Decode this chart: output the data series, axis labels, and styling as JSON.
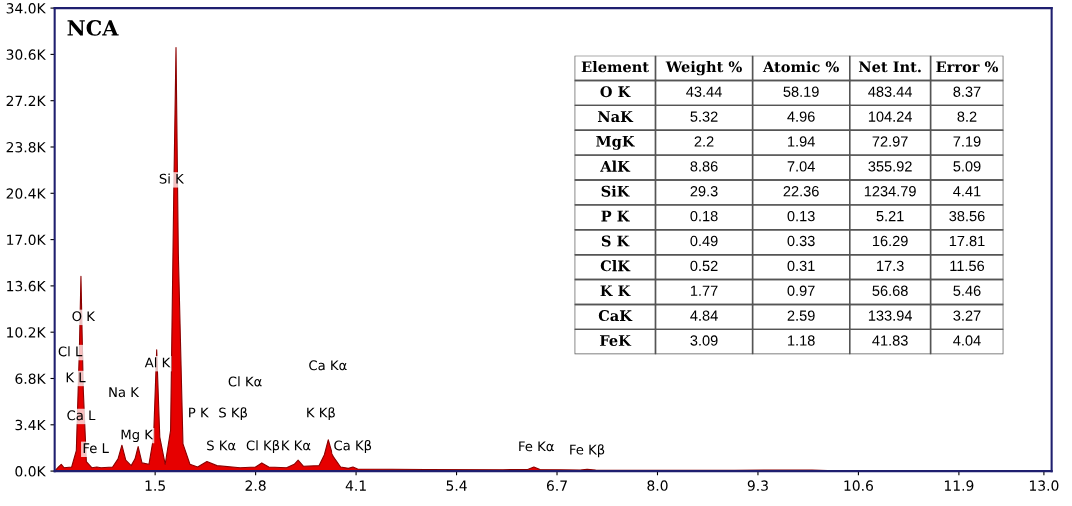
{
  "chart_data": [
    {
      "type": "area",
      "title": "NCA",
      "grid": false,
      "legend": false,
      "xlim": [
        0.2,
        13.1
      ],
      "xticks": [
        1.5,
        2.8,
        4.1,
        5.4,
        6.7,
        {
          "value": 8,
          "label": "8.0"
        },
        9.3,
        10.6,
        11.9,
        {
          "value": 13,
          "label": "13.0"
        }
      ],
      "ylim": [
        0,
        34000
      ],
      "yticks": [
        {
          "value": 0,
          "label": "0.0K"
        },
        {
          "value": 3400,
          "label": "3.4K"
        },
        {
          "value": 6800,
          "label": "6.8K"
        },
        {
          "value": 10200,
          "label": "10.2K"
        },
        {
          "value": 13600,
          "label": "13.6K"
        },
        {
          "value": 17000,
          "label": "17.0K"
        },
        {
          "value": 20400,
          "label": "20.4K"
        },
        {
          "value": 23800,
          "label": "23.8K"
        },
        {
          "value": 27200,
          "label": "27.2K"
        },
        {
          "value": 30600,
          "label": "30.6K"
        },
        {
          "value": 34000,
          "label": "34.0K"
        }
      ],
      "series": [
        {
          "color": "#e60000",
          "x": [
            0.2,
            0.25,
            0.285,
            0.32,
            0.42,
            0.48,
            0.52,
            0.54,
            0.57,
            0.61,
            0.68,
            0.745,
            0.8,
            0.95,
            1.02,
            1.07,
            1.12,
            1.19,
            1.24,
            1.28,
            1.33,
            1.42,
            1.48,
            1.52,
            1.56,
            1.63,
            1.7,
            1.74,
            1.77,
            1.8,
            1.86,
            1.95,
            2.05,
            2.17,
            2.3,
            2.6,
            2.8,
            2.88,
            2.97,
            3.2,
            3.3,
            3.35,
            3.42,
            3.62,
            3.69,
            3.74,
            3.8,
            3.9,
            4.0,
            4.06,
            4.12,
            5.0,
            6.0,
            6.32,
            6.4,
            6.48,
            7.0,
            7.09,
            7.2,
            9.0,
            10.0,
            10.2,
            12.94
          ],
          "values": [
            0,
            300,
            500,
            250,
            300,
            1500,
            9000,
            14300,
            6000,
            700,
            250,
            300,
            250,
            300,
            900,
            1900,
            800,
            400,
            900,
            1800,
            600,
            500,
            2500,
            8900,
            2500,
            500,
            3000,
            20000,
            31100,
            16000,
            2000,
            500,
            300,
            700,
            400,
            250,
            300,
            600,
            300,
            250,
            500,
            800,
            350,
            400,
            1200,
            2300,
            1100,
            300,
            200,
            300,
            150,
            120,
            100,
            120,
            300,
            120,
            80,
            130,
            70,
            60,
            80,
            40,
            30
          ]
        }
      ],
      "annotations": [
        "O K",
        "Cl L",
        "K L",
        "Ca L",
        "Fe L",
        "Na K",
        "Mg K",
        "Al K",
        "Si K",
        "P K",
        "S Kβ",
        "Cl Kα",
        "Ca Kα",
        "K Kβ",
        "S Kα",
        "Cl Kβ",
        "K Kα",
        "Ca Kβ",
        "Fe Kα",
        "Fe Kβ"
      ]
    },
    {
      "type": "other",
      "categories": [
        "Element",
        "Weight %",
        "Atomic %",
        "Net Int.",
        "Error %"
      ],
      "annotations": [
        "O K",
        "43.44",
        "58.19",
        "483.44",
        "8.37",
        "NaK",
        "5.32",
        "4.96",
        "104.24",
        "8.2",
        "MgK",
        "2.2",
        "1.94",
        "72.97",
        "7.19",
        "AlK",
        "8.86",
        "7.04",
        "355.92",
        "5.09",
        "SiK",
        "29.3",
        "22.36",
        "1234.79",
        "4.41",
        "P K",
        "0.18",
        "0.13",
        "5.21",
        "38.56",
        "S K",
        "0.49",
        "0.33",
        "16.29",
        "17.81",
        "ClK",
        "0.52",
        "0.31",
        "17.3",
        "11.56",
        "K K",
        "1.77",
        "0.97",
        "56.68",
        "5.46",
        "CaK",
        "4.84",
        "2.59",
        "133.94",
        "3.27",
        "FeK",
        "3.09",
        "1.18",
        "41.83",
        "4.04"
      ]
    }
  ]
}
